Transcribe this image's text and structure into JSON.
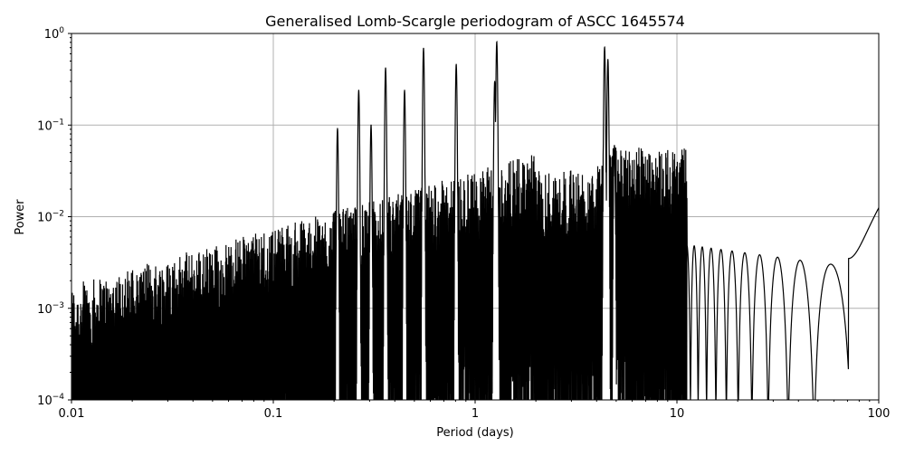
{
  "chart_data": {
    "type": "line",
    "title": "Generalised Lomb-Scargle periodogram of ASCC 1645574",
    "xlabel": "Period (days)",
    "ylabel": "Power",
    "xscale": "log",
    "yscale": "log",
    "xlim": [
      0.01,
      100
    ],
    "ylim": [
      0.0001,
      1
    ],
    "grid": true,
    "x_ticks": [
      "0.01",
      "0.1",
      "1",
      "10",
      "100"
    ],
    "y_ticks": [
      {
        "base": "10",
        "exp": "−4"
      },
      {
        "base": "10",
        "exp": "−3"
      },
      {
        "base": "10",
        "exp": "−2"
      },
      {
        "base": "10",
        "exp": "−1"
      },
      {
        "base": "10",
        "exp": "0"
      }
    ],
    "line_color": "#000000",
    "grid_color": "#b0b0b0",
    "peaks": [
      {
        "period": 1.28,
        "power": 0.81
      },
      {
        "period": 4.38,
        "power": 0.71
      },
      {
        "period": 0.555,
        "power": 0.69
      },
      {
        "period": 4.55,
        "power": 0.52
      },
      {
        "period": 0.806,
        "power": 0.46
      },
      {
        "period": 0.36,
        "power": 0.42
      },
      {
        "period": 0.265,
        "power": 0.24
      },
      {
        "period": 0.447,
        "power": 0.24
      },
      {
        "period": 0.305,
        "power": 0.1
      },
      {
        "period": 0.208,
        "power": 0.092
      },
      {
        "period": 1.25,
        "power": 0.3
      },
      {
        "period": 4.9,
        "power": 0.06
      }
    ]
  }
}
